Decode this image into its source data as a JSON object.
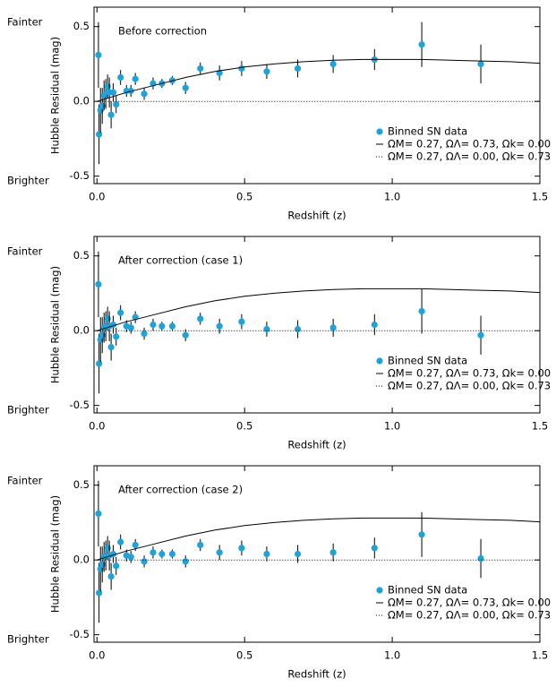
{
  "chart_data": [
    {
      "type": "scatter",
      "title": "Before correction",
      "x_label": "Redshift (z)",
      "y_label": "Hubble Residual (mag)",
      "annotations": [
        "Fainter",
        "Brighter"
      ],
      "legend": "lower right",
      "xlim": [
        -0.01,
        1.5
      ],
      "ylim": [
        -0.55,
        0.63
      ],
      "xticks": [
        {
          "value": 0,
          "label": "0.0"
        },
        0.5,
        {
          "value": 1,
          "label": "1.0"
        },
        1.5
      ],
      "yticks": [
        -0.5,
        {
          "value": 0,
          "label": "0.0"
        },
        0.5
      ],
      "series": [
        {
          "name": "Binned SN data",
          "color": "#1aa3dc",
          "style": "points",
          "x": [
            0.005,
            0.007,
            0.012,
            0.018,
            0.024,
            0.03,
            0.036,
            0.042,
            0.048,
            0.055,
            0.065,
            0.08,
            0.1,
            0.115,
            0.13,
            0.16,
            0.19,
            0.22,
            0.255,
            0.3,
            0.35,
            0.415,
            0.49,
            0.575,
            0.68,
            0.8,
            0.94,
            1.1,
            1.3
          ],
          "values": [
            0.31,
            -0.22,
            -0.06,
            -0.03,
            0.04,
            0.05,
            0.1,
            0.06,
            -0.09,
            0.06,
            -0.02,
            0.16,
            0.07,
            0.07,
            0.15,
            0.05,
            0.12,
            0.12,
            0.14,
            0.09,
            0.22,
            0.19,
            0.22,
            0.2,
            0.22,
            0.25,
            0.28,
            0.38,
            0.25
          ],
          "errors": [
            0.22,
            0.2,
            0.15,
            0.12,
            0.1,
            0.1,
            0.08,
            0.1,
            0.09,
            0.06,
            0.06,
            0.05,
            0.04,
            0.04,
            0.04,
            0.04,
            0.04,
            0.03,
            0.03,
            0.04,
            0.04,
            0.05,
            0.05,
            0.05,
            0.06,
            0.06,
            0.07,
            0.15,
            0.13
          ]
        },
        {
          "name": "ΩM= 0.27, ΩΛ= 0.73, Ωk= 0.00",
          "color": "#000000",
          "style": "solid",
          "x": [
            0,
            0.1,
            0.2,
            0.3,
            0.4,
            0.5,
            0.6,
            0.7,
            0.8,
            0.9,
            1.0,
            1.1,
            1.2,
            1.3,
            1.4,
            1.5
          ],
          "values": [
            0,
            0.06,
            0.11,
            0.16,
            0.2,
            0.23,
            0.25,
            0.265,
            0.275,
            0.28,
            0.28,
            0.28,
            0.275,
            0.27,
            0.265,
            0.255
          ]
        },
        {
          "name": "ΩM= 0.27, ΩΛ= 0.00, Ωk= 0.73",
          "color": "#000000",
          "style": "dotted",
          "x": [
            0,
            1.5
          ],
          "values": [
            0,
            0
          ]
        }
      ]
    },
    {
      "type": "scatter",
      "title": "After correction (case 1)",
      "x_label": "Redshift (z)",
      "y_label": "Hubble Residual (mag)",
      "annotations": [
        "Fainter",
        "Brighter"
      ],
      "legend": "lower right",
      "xlim": [
        -0.01,
        1.5
      ],
      "ylim": [
        -0.55,
        0.63
      ],
      "xticks": [
        {
          "value": 0,
          "label": "0.0"
        },
        0.5,
        {
          "value": 1,
          "label": "1.0"
        },
        1.5
      ],
      "yticks": [
        -0.5,
        {
          "value": 0,
          "label": "0.0"
        },
        0.5
      ],
      "series": [
        {
          "name": "Binned SN data",
          "color": "#1aa3dc",
          "style": "points",
          "x": [
            0.005,
            0.007,
            0.012,
            0.018,
            0.024,
            0.03,
            0.036,
            0.042,
            0.048,
            0.055,
            0.065,
            0.08,
            0.1,
            0.115,
            0.13,
            0.16,
            0.19,
            0.22,
            0.255,
            0.3,
            0.35,
            0.415,
            0.49,
            0.575,
            0.68,
            0.8,
            0.94,
            1.1,
            1.3
          ],
          "values": [
            0.31,
            -0.22,
            -0.06,
            -0.03,
            0.02,
            0.03,
            0.08,
            0.03,
            -0.11,
            0.04,
            -0.04,
            0.12,
            0.03,
            0.02,
            0.09,
            -0.02,
            0.04,
            0.03,
            0.03,
            -0.03,
            0.08,
            0.03,
            0.06,
            0.01,
            0.01,
            0.02,
            0.04,
            0.13,
            -0.03
          ],
          "errors": [
            0.22,
            0.2,
            0.15,
            0.12,
            0.1,
            0.1,
            0.08,
            0.1,
            0.09,
            0.06,
            0.06,
            0.05,
            0.04,
            0.04,
            0.04,
            0.04,
            0.04,
            0.03,
            0.03,
            0.04,
            0.04,
            0.05,
            0.05,
            0.05,
            0.06,
            0.06,
            0.07,
            0.15,
            0.13
          ]
        },
        {
          "name": "ΩM= 0.27, ΩΛ= 0.73, Ωk= 0.00",
          "color": "#000000",
          "style": "solid",
          "x": [
            0,
            0.1,
            0.2,
            0.3,
            0.4,
            0.5,
            0.6,
            0.7,
            0.8,
            0.9,
            1.0,
            1.1,
            1.2,
            1.3,
            1.4,
            1.5
          ],
          "values": [
            0,
            0.06,
            0.11,
            0.16,
            0.2,
            0.23,
            0.25,
            0.265,
            0.275,
            0.28,
            0.28,
            0.28,
            0.275,
            0.27,
            0.265,
            0.255
          ]
        },
        {
          "name": "ΩM= 0.27, ΩΛ= 0.00, Ωk= 0.73",
          "color": "#000000",
          "style": "dotted",
          "x": [
            0,
            1.5
          ],
          "values": [
            0,
            0
          ]
        }
      ]
    },
    {
      "type": "scatter",
      "title": "After correction (case 2)",
      "x_label": "Redshift (z)",
      "y_label": "Hubble Residual (mag)",
      "annotations": [
        "Fainter",
        "Brighter"
      ],
      "legend": "lower right",
      "xlim": [
        -0.01,
        1.5
      ],
      "ylim": [
        -0.55,
        0.63
      ],
      "xticks": [
        {
          "value": 0,
          "label": "0.0"
        },
        0.5,
        {
          "value": 1,
          "label": "1.0"
        },
        1.5
      ],
      "yticks": [
        -0.5,
        {
          "value": 0,
          "label": "0.0"
        },
        0.5
      ],
      "series": [
        {
          "name": "Binned SN data",
          "color": "#1aa3dc",
          "style": "points",
          "x": [
            0.005,
            0.007,
            0.012,
            0.018,
            0.024,
            0.03,
            0.036,
            0.042,
            0.048,
            0.055,
            0.065,
            0.08,
            0.1,
            0.115,
            0.13,
            0.16,
            0.19,
            0.22,
            0.255,
            0.3,
            0.35,
            0.415,
            0.49,
            0.575,
            0.68,
            0.8,
            0.94,
            1.1,
            1.3
          ],
          "values": [
            0.31,
            -0.22,
            -0.06,
            -0.03,
            0.02,
            0.03,
            0.08,
            0.03,
            -0.11,
            0.04,
            -0.04,
            0.12,
            0.03,
            0.02,
            0.1,
            -0.01,
            0.05,
            0.04,
            0.04,
            -0.01,
            0.1,
            0.05,
            0.08,
            0.04,
            0.04,
            0.05,
            0.08,
            0.17,
            0.01
          ],
          "errors": [
            0.22,
            0.2,
            0.15,
            0.12,
            0.1,
            0.1,
            0.08,
            0.1,
            0.09,
            0.06,
            0.06,
            0.05,
            0.04,
            0.04,
            0.04,
            0.04,
            0.04,
            0.03,
            0.03,
            0.04,
            0.04,
            0.05,
            0.05,
            0.05,
            0.06,
            0.06,
            0.07,
            0.15,
            0.13
          ]
        },
        {
          "name": "ΩM= 0.27, ΩΛ= 0.73, Ωk= 0.00",
          "color": "#000000",
          "style": "solid",
          "x": [
            0,
            0.1,
            0.2,
            0.3,
            0.4,
            0.5,
            0.6,
            0.7,
            0.8,
            0.9,
            1.0,
            1.1,
            1.2,
            1.3,
            1.4,
            1.5
          ],
          "values": [
            0,
            0.06,
            0.11,
            0.16,
            0.2,
            0.23,
            0.25,
            0.265,
            0.275,
            0.28,
            0.28,
            0.28,
            0.275,
            0.27,
            0.265,
            0.255
          ]
        },
        {
          "name": "ΩM= 0.27, ΩΛ= 0.00, Ωk= 0.73",
          "color": "#000000",
          "style": "dotted",
          "x": [
            0,
            1.5
          ],
          "values": [
            0,
            0
          ]
        }
      ]
    }
  ]
}
